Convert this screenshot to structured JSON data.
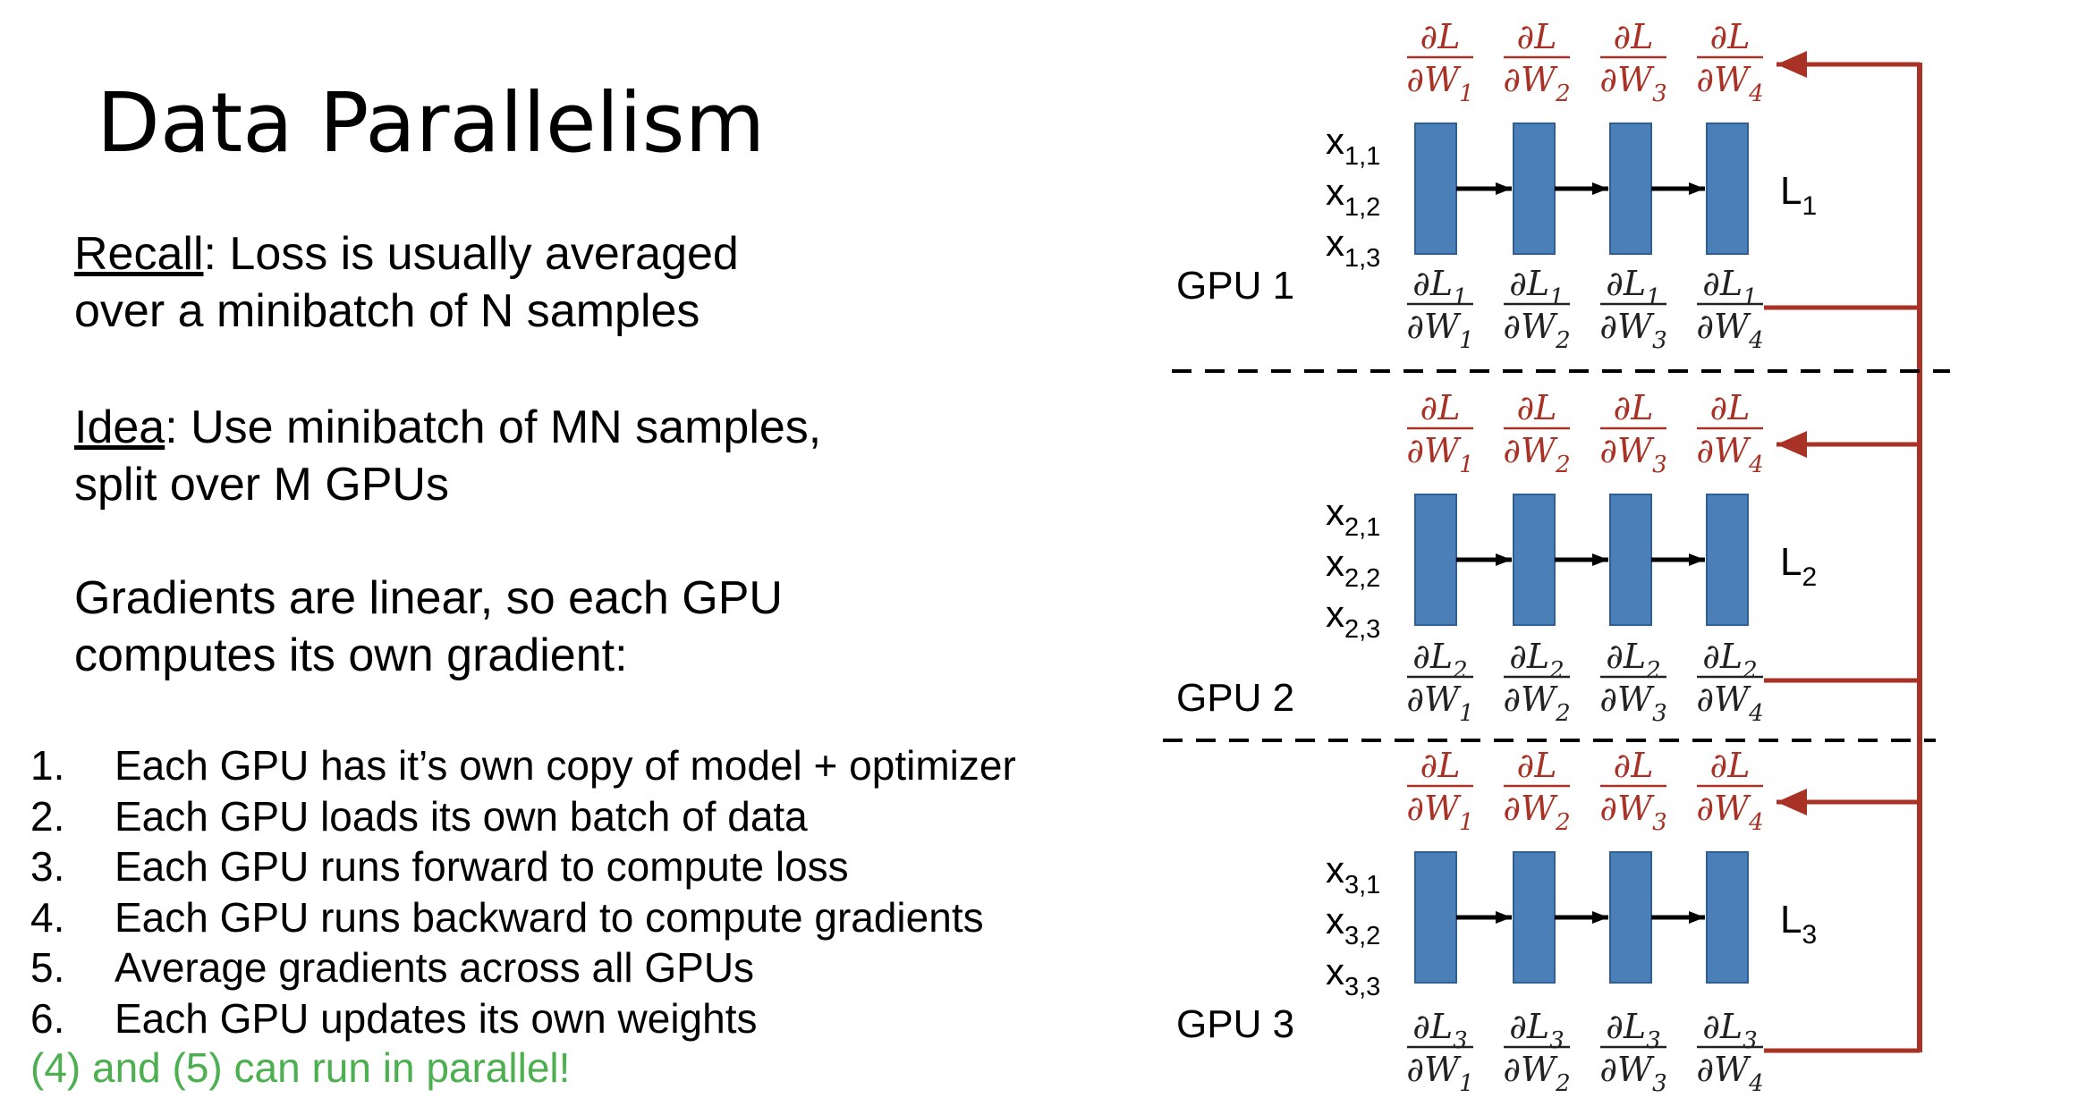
{
  "slide": {
    "title": "Data Parallelism",
    "recall": {
      "keyword": "Recall",
      "line1": ": Loss is usually averaged",
      "line2": "over a minibatch of N samples"
    },
    "idea": {
      "keyword": "Idea",
      "line1": ": Use minibatch of MN samples,",
      "line2": "split over M GPUs"
    },
    "gradients": {
      "line1": "Gradients are linear, so each GPU",
      "line2": "computes its own gradient:"
    },
    "steps": [
      {
        "num": "1.",
        "text": "Each GPU has it’s own copy of model + optimizer"
      },
      {
        "num": "2.",
        "text": "Each GPU loads its own batch of data"
      },
      {
        "num": "3.",
        "text": "Each GPU runs forward to compute loss"
      },
      {
        "num": "4.",
        "text": "Each GPU runs backward to compute gradients"
      },
      {
        "num": "5.",
        "text": "Average gradients across all GPUs"
      },
      {
        "num": "6.",
        "text": "Each GPU updates its own weights"
      }
    ],
    "note": "(4) and (5) can run in parallel!"
  },
  "diagram": {
    "colors": {
      "block": "#4a7fb8",
      "block_border": "#2e5f95",
      "arrow": "#000000",
      "gradient": "#a93226",
      "dash": "#000000"
    },
    "gpus": [
      {
        "label": "GPU 1",
        "inputs": [
          "x1,1",
          "x1,2",
          "x1,3"
        ],
        "loss": "L1",
        "avg_grads": [
          "∂L/∂W1",
          "∂L/∂W2",
          "∂L/∂W3",
          "∂L/∂W4"
        ],
        "local_grads": [
          "∂L1/∂W1",
          "∂L1/∂W2",
          "∂L1/∂W3",
          "∂L1/∂W4"
        ]
      },
      {
        "label": "GPU 2",
        "inputs": [
          "x2,1",
          "x2,2",
          "x2,3"
        ],
        "loss": "L2",
        "avg_grads": [
          "∂L/∂W1",
          "∂L/∂W2",
          "∂L/∂W3",
          "∂L/∂W4"
        ],
        "local_grads": [
          "∂L2/∂W1",
          "∂L2/∂W2",
          "∂L2/∂W3",
          "∂L2/∂W4"
        ]
      },
      {
        "label": "GPU 3",
        "inputs": [
          "x3,1",
          "x3,2",
          "x3,3"
        ],
        "loss": "L3",
        "avg_grads": [
          "∂L/∂W1",
          "∂L/∂W2",
          "∂L/∂W3",
          "∂L/∂W4"
        ],
        "local_grads": [
          "∂L3/∂W1",
          "∂L3/∂W2",
          "∂L3/∂W3",
          "∂L3/∂W4"
        ]
      }
    ]
  }
}
